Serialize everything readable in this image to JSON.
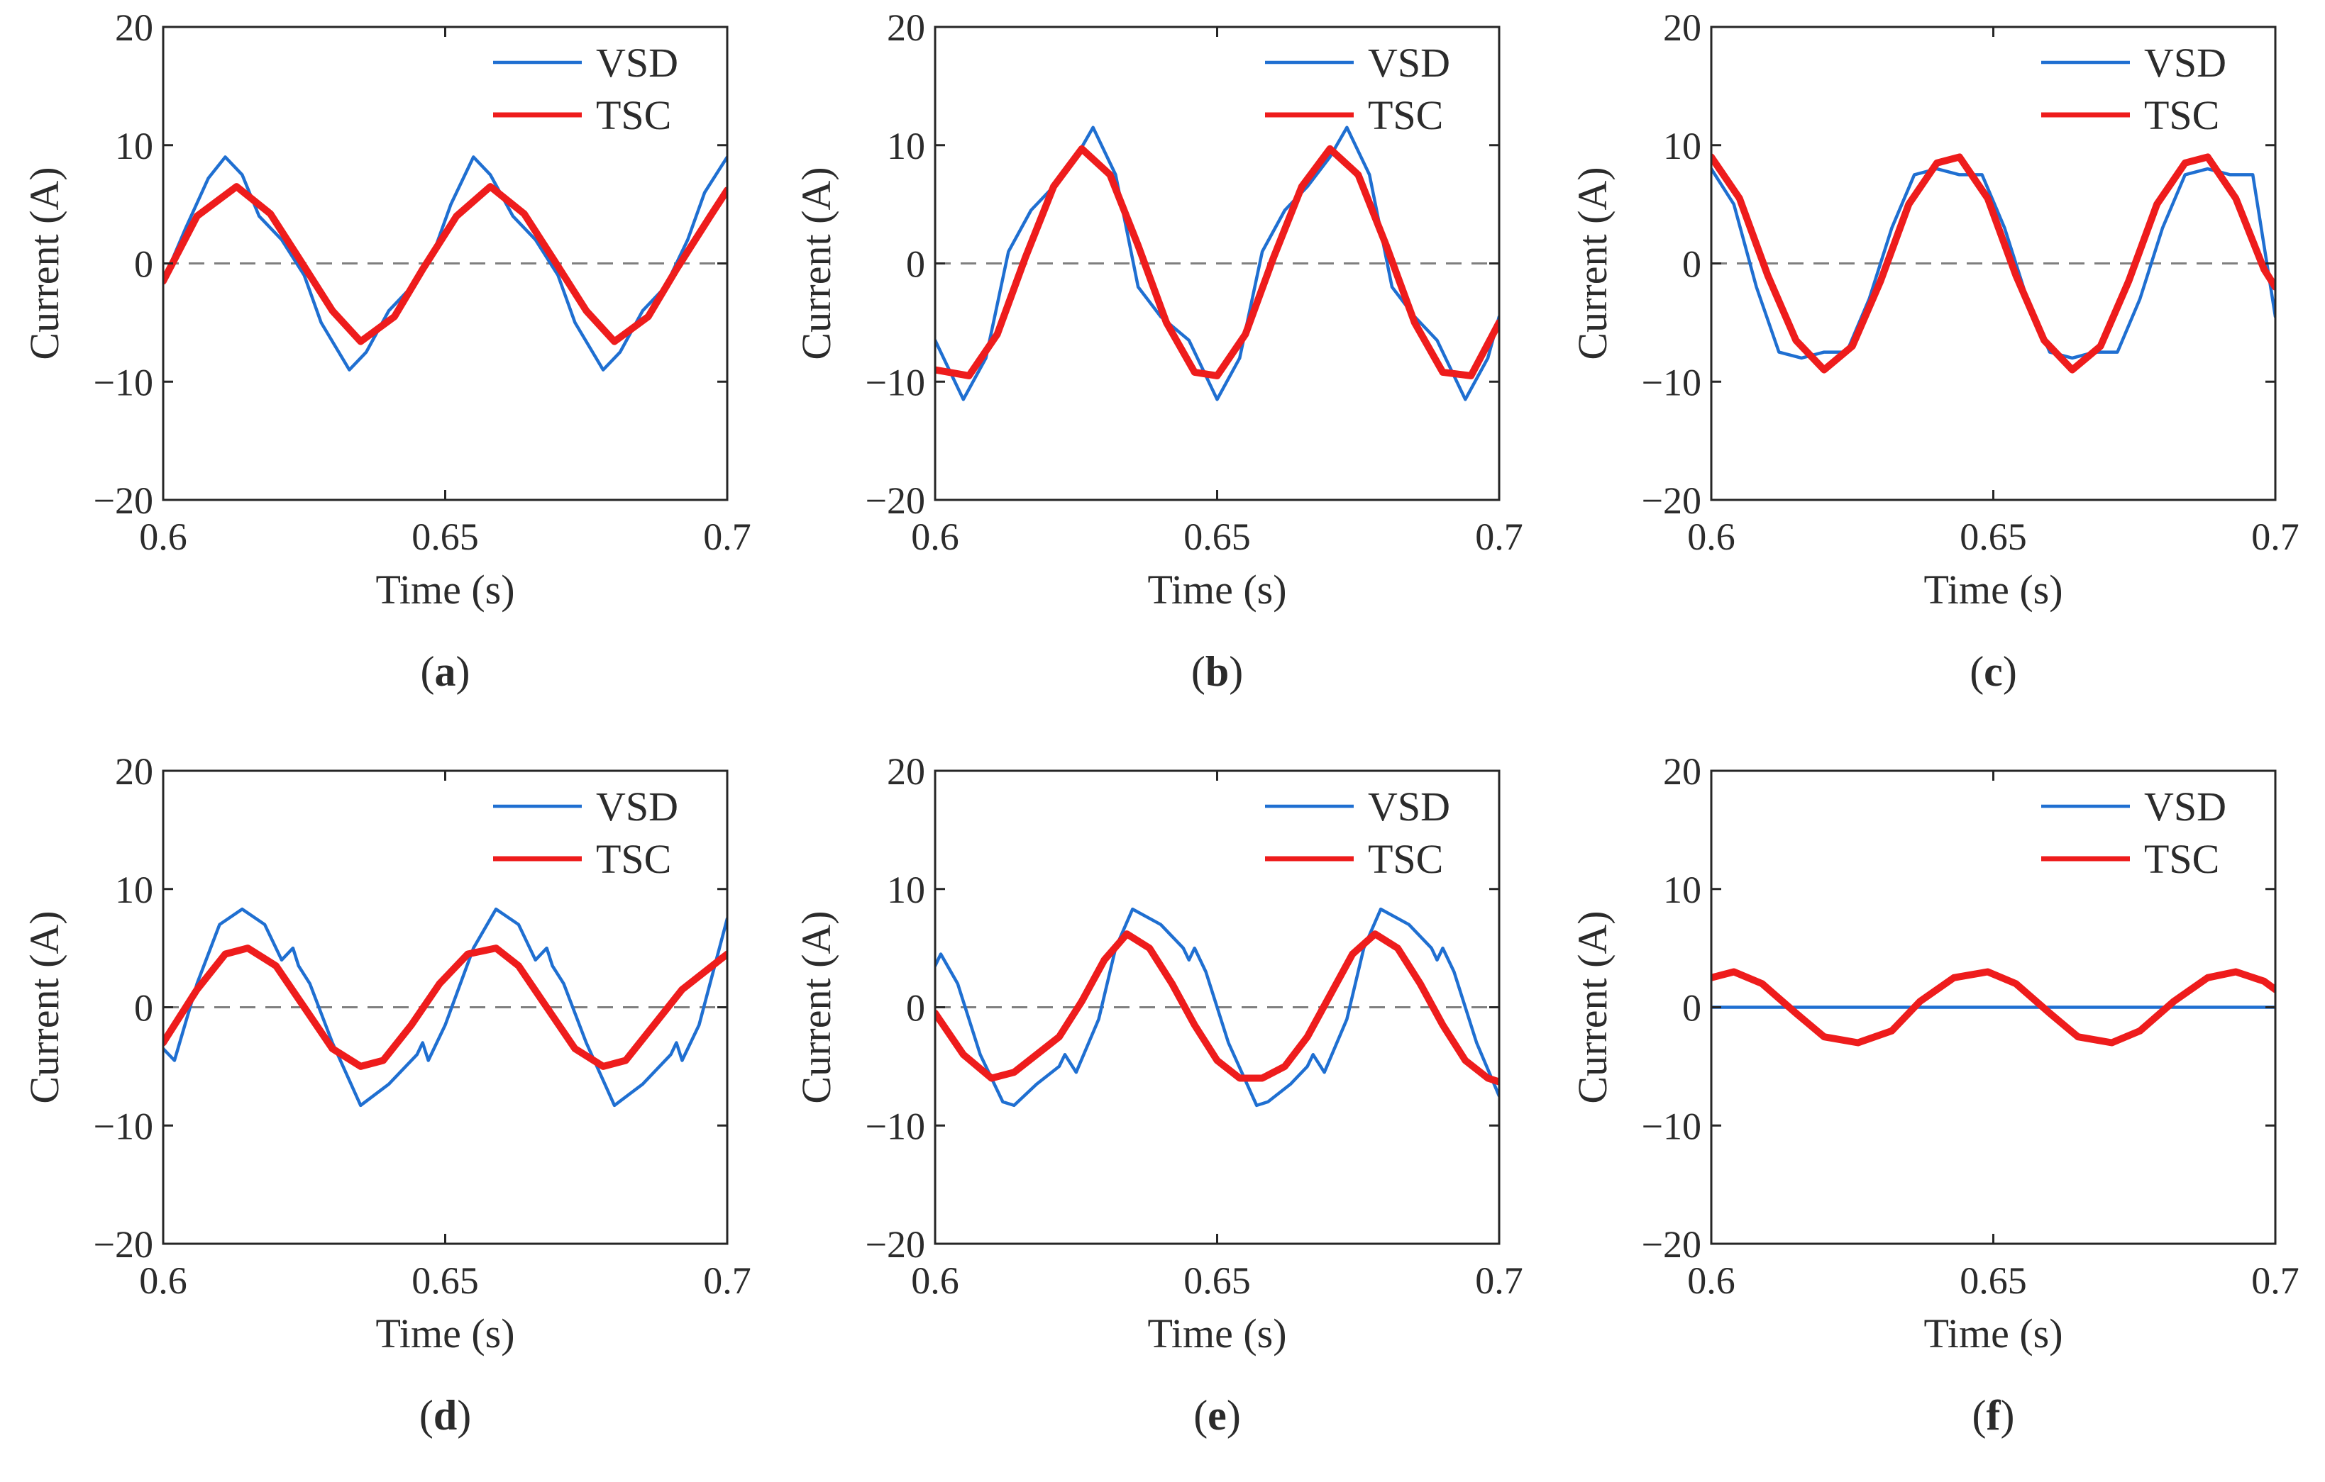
{
  "colors": {
    "vsd": "#1f6fd1",
    "tsc": "#ee1c1c",
    "zero_line": "#7f7f7f",
    "axes": "#262626"
  },
  "chart_data": [
    {
      "type": "line",
      "panel_label": "a",
      "xlabel": "Time (s)",
      "ylabel": "Current (A)",
      "xlim": [
        0.6,
        0.7
      ],
      "ylim": [
        -20,
        20
      ],
      "xticks": [
        "0.6",
        "0.65",
        "0.7"
      ],
      "yticks": [
        "−20",
        "−10",
        "0",
        "10",
        "20"
      ],
      "legend": {
        "position": "top-right",
        "entries": [
          "VSD",
          "TSC"
        ]
      },
      "series": [
        {
          "name": "VSD",
          "x": [
            0.6,
            0.604,
            0.608,
            0.611,
            0.614,
            0.617,
            0.621,
            0.625,
            0.628,
            0.633,
            0.636,
            0.64,
            0.644,
            0.648,
            0.651,
            0.655,
            0.658,
            0.662,
            0.666,
            0.67,
            0.673,
            0.678,
            0.681,
            0.685,
            0.689,
            0.693,
            0.696,
            0.7
          ],
          "y": [
            -1.5,
            3.0,
            7.2,
            9.0,
            7.5,
            4.0,
            2.0,
            -1.0,
            -5.0,
            -9.0,
            -7.5,
            -4.0,
            -2.0,
            1.0,
            5.0,
            9.0,
            7.5,
            4.0,
            2.0,
            -1.0,
            -5.0,
            -9.0,
            -7.5,
            -4.0,
            -2.0,
            2.0,
            6.0,
            9.0
          ]
        },
        {
          "name": "TSC",
          "x": [
            0.6,
            0.606,
            0.613,
            0.619,
            0.624,
            0.63,
            0.635,
            0.641,
            0.646,
            0.652,
            0.658,
            0.664,
            0.669,
            0.675,
            0.68,
            0.686,
            0.691,
            0.697,
            0.7
          ],
          "y": [
            -1.5,
            4.0,
            6.5,
            4.2,
            0.5,
            -4.0,
            -6.6,
            -4.5,
            -0.5,
            4.0,
            6.5,
            4.2,
            0.5,
            -4.0,
            -6.6,
            -4.5,
            -0.5,
            4.0,
            6.2
          ]
        }
      ]
    },
    {
      "type": "line",
      "panel_label": "b",
      "xlabel": "Time (s)",
      "ylabel": "Current (A)",
      "xlim": [
        0.6,
        0.7
      ],
      "ylim": [
        -20,
        20
      ],
      "xticks": [
        "0.6",
        "0.65",
        "0.7"
      ],
      "yticks": [
        "−20",
        "−10",
        "0",
        "10",
        "20"
      ],
      "legend": {
        "position": "top-right",
        "entries": [
          "VSD",
          "TSC"
        ]
      },
      "series": [
        {
          "name": "VSD",
          "x": [
            0.6,
            0.605,
            0.609,
            0.613,
            0.617,
            0.621,
            0.625,
            0.628,
            0.632,
            0.636,
            0.64,
            0.645,
            0.65,
            0.654,
            0.658,
            0.662,
            0.666,
            0.67,
            0.673,
            0.677,
            0.681,
            0.685,
            0.689,
            0.694,
            0.698,
            0.7
          ],
          "y": [
            -6.5,
            -11.5,
            -8.0,
            1.0,
            4.5,
            6.5,
            9.0,
            11.5,
            7.5,
            -2.0,
            -4.5,
            -6.5,
            -11.5,
            -8.0,
            1.0,
            4.5,
            6.5,
            9.0,
            11.5,
            7.5,
            -2.0,
            -4.5,
            -6.5,
            -11.5,
            -8.0,
            -4.5
          ]
        },
        {
          "name": "TSC",
          "x": [
            0.6,
            0.606,
            0.611,
            0.616,
            0.621,
            0.626,
            0.631,
            0.636,
            0.641,
            0.646,
            0.65,
            0.655,
            0.66,
            0.665,
            0.67,
            0.675,
            0.68,
            0.685,
            0.69,
            0.695,
            0.7
          ],
          "y": [
            -9.0,
            -9.5,
            -6.0,
            0.5,
            6.5,
            9.7,
            7.5,
            1.5,
            -5.0,
            -9.2,
            -9.5,
            -6.0,
            0.5,
            6.5,
            9.7,
            7.5,
            1.5,
            -5.0,
            -9.2,
            -9.5,
            -5.0
          ]
        }
      ]
    },
    {
      "type": "line",
      "panel_label": "c",
      "xlabel": "Time (s)",
      "ylabel": "Current (A)",
      "xlim": [
        0.6,
        0.7
      ],
      "ylim": [
        -20,
        20
      ],
      "xticks": [
        "0.6",
        "0.65",
        "0.7"
      ],
      "yticks": [
        "−20",
        "−10",
        "0",
        "10",
        "20"
      ],
      "legend": {
        "position": "top-right",
        "entries": [
          "VSD",
          "TSC"
        ]
      },
      "series": [
        {
          "name": "VSD",
          "x": [
            0.6,
            0.604,
            0.608,
            0.612,
            0.616,
            0.62,
            0.624,
            0.628,
            0.632,
            0.636,
            0.64,
            0.644,
            0.648,
            0.652,
            0.656,
            0.66,
            0.664,
            0.668,
            0.672,
            0.676,
            0.68,
            0.684,
            0.688,
            0.692,
            0.696,
            0.7
          ],
          "y": [
            8.0,
            5.0,
            -2.0,
            -7.5,
            -8.0,
            -7.5,
            -7.5,
            -3.0,
            3.0,
            7.5,
            8.0,
            7.5,
            7.5,
            3.0,
            -3.0,
            -7.5,
            -8.0,
            -7.5,
            -7.5,
            -3.0,
            3.0,
            7.5,
            8.0,
            7.5,
            7.5,
            -4.5
          ]
        },
        {
          "name": "TSC",
          "x": [
            0.6,
            0.605,
            0.61,
            0.615,
            0.62,
            0.625,
            0.63,
            0.635,
            0.64,
            0.644,
            0.649,
            0.654,
            0.659,
            0.664,
            0.669,
            0.674,
            0.679,
            0.684,
            0.688,
            0.693,
            0.698,
            0.7
          ],
          "y": [
            9.0,
            5.5,
            -1.0,
            -6.5,
            -9.0,
            -7.0,
            -1.5,
            5.0,
            8.5,
            9.0,
            5.5,
            -1.0,
            -6.5,
            -9.0,
            -7.0,
            -1.5,
            5.0,
            8.5,
            9.0,
            5.5,
            -0.5,
            -2.0
          ]
        }
      ]
    },
    {
      "type": "line",
      "panel_label": "d",
      "xlabel": "Time (s)",
      "ylabel": "Current (A)",
      "xlim": [
        0.6,
        0.7
      ],
      "ylim": [
        -20,
        20
      ],
      "xticks": [
        "0.6",
        "0.65",
        "0.7"
      ],
      "yticks": [
        "−20",
        "−10",
        "0",
        "10",
        "20"
      ],
      "legend": {
        "position": "top-right",
        "entries": [
          "VSD",
          "TSC"
        ]
      },
      "series": [
        {
          "name": "VSD",
          "x": [
            0.6,
            0.602,
            0.606,
            0.61,
            0.614,
            0.618,
            0.621,
            0.623,
            0.624,
            0.626,
            0.63,
            0.635,
            0.64,
            0.645,
            0.646,
            0.647,
            0.65,
            0.655,
            0.659,
            0.663,
            0.666,
            0.668,
            0.669,
            0.671,
            0.675,
            0.68,
            0.685,
            0.69,
            0.691,
            0.692,
            0.695,
            0.7
          ],
          "y": [
            -3.5,
            -4.5,
            2.0,
            7.0,
            8.3,
            7.0,
            4.0,
            5.0,
            3.5,
            2.0,
            -3.0,
            -8.3,
            -6.5,
            -4.0,
            -3.0,
            -4.5,
            -1.5,
            5.0,
            8.3,
            7.0,
            4.0,
            5.0,
            3.5,
            2.0,
            -3.0,
            -8.3,
            -6.5,
            -4.0,
            -3.0,
            -4.5,
            -1.5,
            7.5
          ]
        },
        {
          "name": "TSC",
          "x": [
            0.6,
            0.606,
            0.611,
            0.615,
            0.62,
            0.625,
            0.63,
            0.635,
            0.639,
            0.644,
            0.649,
            0.654,
            0.659,
            0.663,
            0.668,
            0.673,
            0.678,
            0.682,
            0.687,
            0.692,
            0.696,
            0.7
          ],
          "y": [
            -3.0,
            1.5,
            4.5,
            5.0,
            3.5,
            0.0,
            -3.5,
            -5.0,
            -4.5,
            -1.5,
            2.0,
            4.5,
            5.0,
            3.5,
            0.0,
            -3.5,
            -5.0,
            -4.5,
            -1.5,
            1.5,
            3.0,
            4.5
          ]
        }
      ]
    },
    {
      "type": "line",
      "panel_label": "e",
      "xlabel": "Time (s)",
      "ylabel": "Current (A)",
      "xlim": [
        0.6,
        0.7
      ],
      "ylim": [
        -20,
        20
      ],
      "xticks": [
        "0.6",
        "0.65",
        "0.7"
      ],
      "yticks": [
        "−20",
        "−10",
        "0",
        "10",
        "20"
      ],
      "legend": {
        "position": "top-right",
        "entries": [
          "VSD",
          "TSC"
        ]
      },
      "series": [
        {
          "name": "VSD",
          "x": [
            0.6,
            0.601,
            0.604,
            0.608,
            0.612,
            0.614,
            0.618,
            0.622,
            0.623,
            0.625,
            0.629,
            0.632,
            0.635,
            0.64,
            0.644,
            0.645,
            0.646,
            0.648,
            0.652,
            0.657,
            0.659,
            0.663,
            0.666,
            0.667,
            0.669,
            0.673,
            0.676,
            0.679,
            0.684,
            0.688,
            0.689,
            0.69,
            0.692,
            0.696,
            0.7
          ],
          "y": [
            3.5,
            4.5,
            2.0,
            -4.0,
            -8.0,
            -8.3,
            -6.5,
            -5.0,
            -4.0,
            -5.5,
            -1.0,
            5.0,
            8.3,
            7.0,
            5.0,
            4.0,
            5.0,
            3.0,
            -3.0,
            -8.3,
            -8.0,
            -6.5,
            -5.0,
            -4.0,
            -5.5,
            -1.0,
            5.0,
            8.3,
            7.0,
            5.0,
            4.0,
            5.0,
            3.0,
            -3.0,
            -7.5
          ]
        },
        {
          "name": "TSC",
          "x": [
            0.6,
            0.605,
            0.61,
            0.614,
            0.618,
            0.622,
            0.626,
            0.63,
            0.634,
            0.638,
            0.642,
            0.646,
            0.65,
            0.654,
            0.658,
            0.662,
            0.666,
            0.67,
            0.674,
            0.678,
            0.682,
            0.686,
            0.69,
            0.694,
            0.698,
            0.7
          ],
          "y": [
            -0.5,
            -4.0,
            -6.0,
            -5.5,
            -4.0,
            -2.5,
            0.5,
            4.0,
            6.2,
            5.0,
            2.0,
            -1.5,
            -4.5,
            -6.0,
            -6.0,
            -5.0,
            -2.5,
            1.0,
            4.5,
            6.2,
            5.0,
            2.0,
            -1.5,
            -4.5,
            -6.0,
            -6.3
          ]
        }
      ]
    },
    {
      "type": "line",
      "panel_label": "f",
      "xlabel": "Time (s)",
      "ylabel": "Current (A)",
      "xlim": [
        0.6,
        0.7
      ],
      "ylim": [
        -20,
        20
      ],
      "xticks": [
        "0.6",
        "0.65",
        "0.7"
      ],
      "yticks": [
        "−20",
        "−10",
        "0",
        "10",
        "20"
      ],
      "legend": {
        "position": "top-right",
        "entries": [
          "VSD",
          "TSC"
        ]
      },
      "series": [
        {
          "name": "VSD",
          "x": [
            0.6,
            0.7
          ],
          "y": [
            0.0,
            0.0
          ]
        },
        {
          "name": "TSC",
          "x": [
            0.6,
            0.604,
            0.609,
            0.615,
            0.62,
            0.626,
            0.632,
            0.637,
            0.643,
            0.649,
            0.654,
            0.66,
            0.665,
            0.671,
            0.676,
            0.682,
            0.688,
            0.693,
            0.698,
            0.7
          ],
          "y": [
            2.5,
            3.0,
            2.0,
            -0.5,
            -2.5,
            -3.0,
            -2.0,
            0.5,
            2.5,
            3.0,
            2.0,
            -0.5,
            -2.5,
            -3.0,
            -2.0,
            0.5,
            2.5,
            3.0,
            2.2,
            1.5
          ]
        }
      ]
    }
  ]
}
